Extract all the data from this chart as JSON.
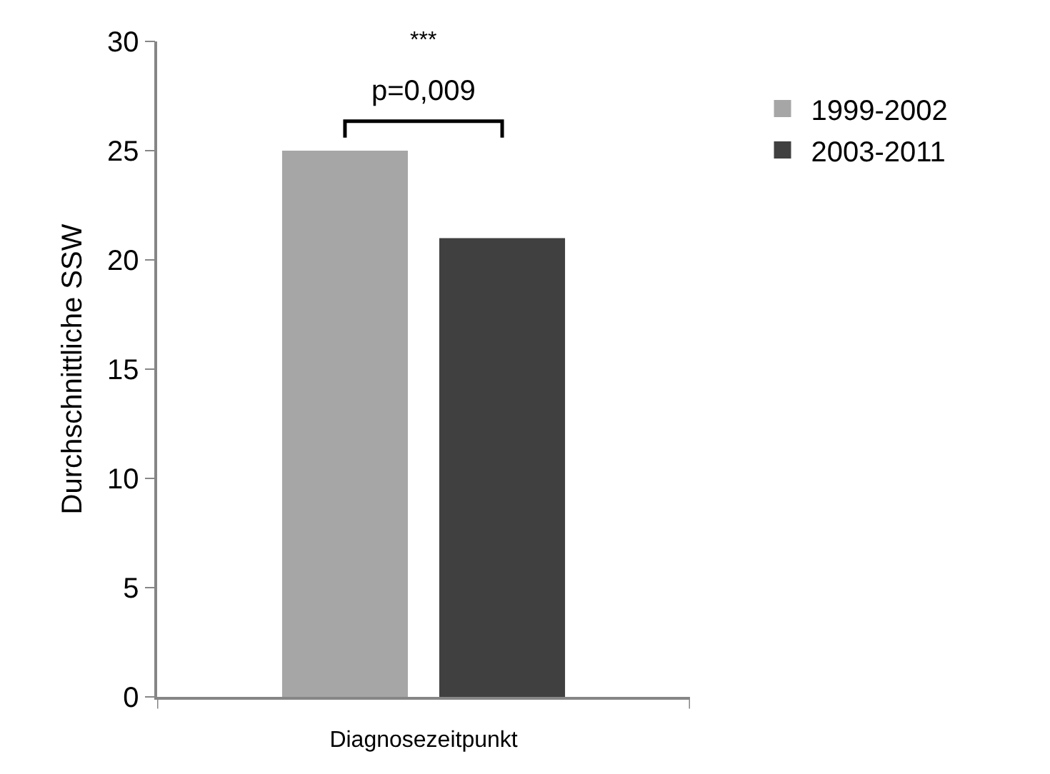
{
  "chart_data": {
    "type": "bar",
    "xlabel": null,
    "ylabel": "Durchschnittliche SSW",
    "categories": [
      "Diagnosezeitpunkt"
    ],
    "series": [
      {
        "name": "1999-2002",
        "color": "#a6a6a6",
        "values": [
          25
        ]
      },
      {
        "name": "2003-2011",
        "color": "#404040",
        "values": [
          21
        ]
      }
    ],
    "ylim": [
      0,
      30
    ],
    "yticks": [
      0,
      5,
      10,
      15,
      20,
      25,
      30
    ],
    "annotations": [
      "***",
      "p=0,009"
    ],
    "legend": "top right"
  }
}
